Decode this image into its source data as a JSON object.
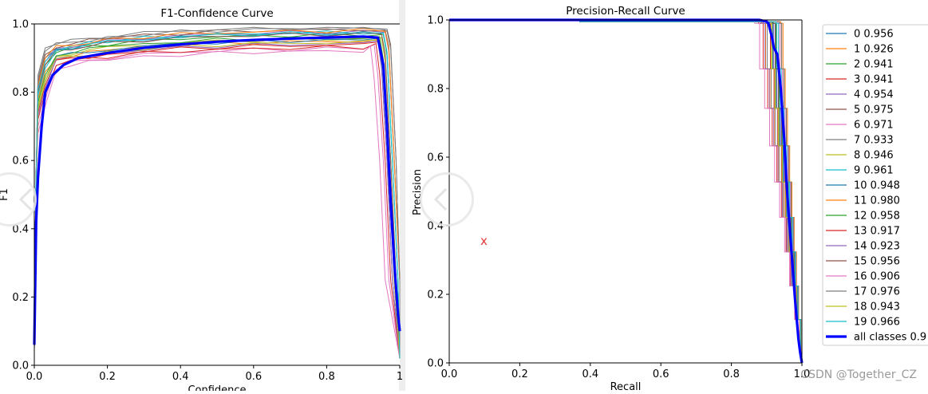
{
  "chart_data": [
    {
      "type": "line",
      "title": "F1-Confidence Curve",
      "xlabel": "Confidence",
      "ylabel": "F1",
      "xlim": [
        0,
        1
      ],
      "ylim": [
        0,
        1
      ],
      "x_ticks": [
        "0.0",
        "0.2",
        "0.4",
        "0.6",
        "0.8",
        "1"
      ],
      "y_ticks": [
        "0.0",
        "0.2",
        "0.4",
        "0.6",
        "0.8",
        "1.0"
      ],
      "grid": false,
      "main_series": {
        "color": "#0000ff",
        "points": [
          [
            0.0,
            0.06
          ],
          [
            0.005,
            0.42
          ],
          [
            0.01,
            0.55
          ],
          [
            0.02,
            0.7
          ],
          [
            0.03,
            0.8
          ],
          [
            0.05,
            0.85
          ],
          [
            0.08,
            0.88
          ],
          [
            0.12,
            0.9
          ],
          [
            0.2,
            0.915
          ],
          [
            0.3,
            0.93
          ],
          [
            0.4,
            0.94
          ],
          [
            0.5,
            0.948
          ],
          [
            0.6,
            0.953
          ],
          [
            0.7,
            0.957
          ],
          [
            0.8,
            0.96
          ],
          [
            0.9,
            0.963
          ],
          [
            0.94,
            0.96
          ],
          [
            0.955,
            0.88
          ],
          [
            0.965,
            0.7
          ],
          [
            0.975,
            0.48
          ],
          [
            0.985,
            0.3
          ],
          [
            0.995,
            0.15
          ],
          [
            1.0,
            0.1
          ]
        ]
      },
      "class_palette": [
        "#1f77b4",
        "#ff7f0e",
        "#2ca02c",
        "#d62728",
        "#9467bd",
        "#8c564b",
        "#e377c2",
        "#7f7f7f",
        "#bcbd22",
        "#17becf"
      ],
      "class_offsets": [
        0.012,
        -0.02,
        0.008,
        -0.035,
        0.02,
        0.03,
        -0.05,
        0.035,
        -0.01,
        0.018,
        -0.015,
        0.025,
        -0.005,
        -0.045,
        -0.03,
        0.01,
        -0.06,
        0.04,
        -0.025,
        0.015
      ],
      "class_early": [
        0.9,
        0.86,
        0.88,
        0.82,
        0.89,
        0.91,
        0.78,
        0.92,
        0.84,
        0.87,
        0.83,
        0.9,
        0.85,
        0.8,
        0.81,
        0.88,
        0.76,
        0.93,
        0.83,
        0.89
      ],
      "class_drop": [
        0.96,
        0.95,
        0.965,
        0.955,
        0.97,
        0.975,
        0.94,
        0.97,
        0.96,
        0.965,
        0.95,
        0.97,
        0.955,
        0.945,
        0.95,
        0.96,
        0.93,
        0.975,
        0.955,
        0.965
      ]
    },
    {
      "type": "line",
      "title": "Precision-Recall Curve",
      "xlabel": "Recall",
      "ylabel": "Precision",
      "xlim": [
        0,
        1
      ],
      "ylim": [
        0,
        1
      ],
      "x_ticks": [
        "0.0",
        "0.2",
        "0.4",
        "0.6",
        "0.8",
        "1.0"
      ],
      "y_ticks": [
        "0.0",
        "0.2",
        "0.4",
        "0.6",
        "0.8",
        "1.0"
      ],
      "grid": false,
      "main_series": {
        "color": "#0000ff",
        "points": [
          [
            0.0,
            1.0
          ],
          [
            0.88,
            1.0
          ],
          [
            0.9,
            0.995
          ],
          [
            0.905,
            0.99
          ],
          [
            0.91,
            0.97
          ],
          [
            0.915,
            0.95
          ],
          [
            0.92,
            0.92
          ],
          [
            0.93,
            0.9
          ],
          [
            0.935,
            0.85
          ],
          [
            0.94,
            0.8
          ],
          [
            0.945,
            0.72
          ],
          [
            0.95,
            0.65
          ],
          [
            0.955,
            0.55
          ],
          [
            0.96,
            0.47
          ],
          [
            0.965,
            0.4
          ],
          [
            0.97,
            0.33
          ],
          [
            0.975,
            0.26
          ],
          [
            0.98,
            0.19
          ],
          [
            0.985,
            0.13
          ],
          [
            0.99,
            0.07
          ],
          [
            0.995,
            0.03
          ],
          [
            1.0,
            0.0
          ]
        ]
      },
      "class_knees": [
        0.955,
        0.925,
        0.94,
        0.94,
        0.95,
        0.975,
        0.97,
        0.93,
        0.945,
        0.96,
        0.948,
        0.98,
        0.958,
        0.917,
        0.923,
        0.956,
        0.906,
        0.976,
        0.943,
        0.966
      ]
    }
  ],
  "legend": {
    "placement": "right",
    "entries": [
      {
        "label": "0 0.956",
        "color": "#1f77b4"
      },
      {
        "label": "1 0.926",
        "color": "#ff7f0e"
      },
      {
        "label": "2 0.941",
        "color": "#2ca02c"
      },
      {
        "label": "3 0.941",
        "color": "#d62728"
      },
      {
        "label": "4 0.954",
        "color": "#9467bd"
      },
      {
        "label": "5 0.975",
        "color": "#8c564b"
      },
      {
        "label": "6 0.971",
        "color": "#e377c2"
      },
      {
        "label": "7 0.933",
        "color": "#7f7f7f"
      },
      {
        "label": "8 0.946",
        "color": "#bcbd22"
      },
      {
        "label": "9 0.961",
        "color": "#17becf"
      },
      {
        "label": "10 0.948",
        "color": "#1f77b4"
      },
      {
        "label": "11 0.980",
        "color": "#ff7f0e"
      },
      {
        "label": "12 0.958",
        "color": "#2ca02c"
      },
      {
        "label": "13 0.917",
        "color": "#d62728"
      },
      {
        "label": "14 0.923",
        "color": "#9467bd"
      },
      {
        "label": "15 0.956",
        "color": "#8c564b"
      },
      {
        "label": "16 0.906",
        "color": "#e377c2"
      },
      {
        "label": "17 0.976",
        "color": "#7f7f7f"
      },
      {
        "label": "18 0.943",
        "color": "#bcbd22"
      },
      {
        "label": "19 0.966",
        "color": "#17becf"
      },
      {
        "label": "all classes 0.9",
        "color": "#0000ff",
        "bold": true
      }
    ]
  },
  "watermark": "CSDN @Together_CZ",
  "marker_text": "x"
}
